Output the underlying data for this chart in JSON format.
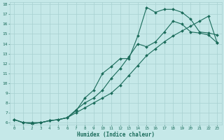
{
  "xlabel": "Humidex (Indice chaleur)",
  "background_color": "#c5e8e8",
  "grid_color": "#a8d0d0",
  "line_color": "#1a6b5a",
  "xlim": [
    -0.5,
    23.5
  ],
  "ylim": [
    5.8,
    18.2
  ],
  "xticks": [
    0,
    1,
    2,
    3,
    4,
    5,
    6,
    7,
    8,
    9,
    10,
    11,
    12,
    13,
    14,
    15,
    16,
    17,
    18,
    19,
    20,
    21,
    22,
    23
  ],
  "yticks": [
    6,
    7,
    8,
    9,
    10,
    11,
    12,
    13,
    14,
    15,
    16,
    17,
    18
  ],
  "line1_x": [
    0,
    1,
    2,
    3,
    4,
    5,
    6,
    7,
    8,
    9,
    10,
    11,
    12,
    13,
    14,
    15,
    16,
    17,
    18,
    19,
    20,
    21,
    22,
    23
  ],
  "line1_y": [
    6.3,
    6.0,
    6.0,
    6.0,
    6.2,
    6.3,
    6.5,
    7.2,
    8.5,
    9.3,
    11.0,
    11.7,
    12.5,
    12.5,
    14.8,
    17.7,
    17.2,
    17.5,
    17.5,
    17.2,
    16.5,
    15.2,
    15.1,
    14.9
  ],
  "line2_x": [
    0,
    1,
    2,
    3,
    4,
    5,
    6,
    7,
    8,
    9,
    10,
    11,
    12,
    13,
    14,
    15,
    16,
    17,
    18,
    19,
    20,
    21,
    22,
    23
  ],
  "line2_y": [
    6.3,
    6.0,
    5.9,
    6.0,
    6.2,
    6.3,
    6.5,
    7.0,
    7.5,
    8.0,
    8.5,
    9.0,
    9.8,
    10.8,
    11.8,
    12.8,
    13.5,
    14.2,
    14.8,
    15.3,
    15.8,
    16.3,
    16.8,
    14.1
  ],
  "line3_x": [
    0,
    1,
    2,
    3,
    4,
    5,
    6,
    7,
    8,
    9,
    10,
    11,
    12,
    13,
    14,
    15,
    16,
    17,
    18,
    19,
    20,
    21,
    22,
    23
  ],
  "line3_y": [
    6.3,
    6.0,
    5.9,
    6.0,
    6.2,
    6.3,
    6.5,
    7.3,
    8.0,
    8.5,
    9.3,
    10.5,
    11.5,
    12.7,
    14.0,
    13.7,
    14.2,
    15.2,
    16.3,
    16.0,
    15.2,
    15.1,
    14.9,
    14.1
  ]
}
